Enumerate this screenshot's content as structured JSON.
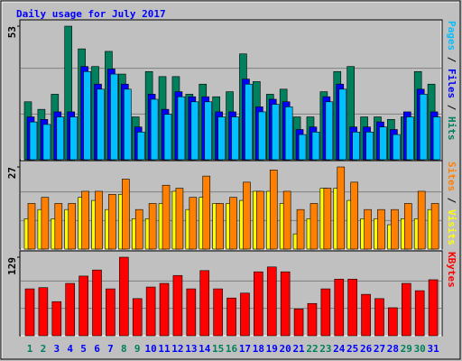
{
  "title": "Daily usage for July 2017",
  "legend_separator": " / ",
  "categories": [
    "1",
    "2",
    "3",
    "4",
    "5",
    "6",
    "7",
    "8",
    "9",
    "10",
    "11",
    "12",
    "13",
    "14",
    "15",
    "16",
    "17",
    "18",
    "19",
    "20",
    "21",
    "22",
    "23",
    "24",
    "25",
    "26",
    "27",
    "28",
    "29",
    "30",
    "31"
  ],
  "category_colors": [
    "#00805c",
    "#00805c",
    "#0000ff",
    "#0000ff",
    "#0000ff",
    "#0000ff",
    "#0000ff",
    "#00805c",
    "#00805c",
    "#0000ff",
    "#0000ff",
    "#0000ff",
    "#0000ff",
    "#0000ff",
    "#00805c",
    "#00805c",
    "#0000ff",
    "#0000ff",
    "#0000ff",
    "#0000ff",
    "#0000ff",
    "#00805c",
    "#00805c",
    "#0000ff",
    "#0000ff",
    "#0000ff",
    "#0000ff",
    "#0000ff",
    "#00805c",
    "#00805c",
    "#0000ff"
  ],
  "chart_data": [
    {
      "type": "bar",
      "ylim": [
        0,
        53
      ],
      "yticks": [
        53
      ],
      "grid": true,
      "series": [
        {
          "name": "Hits",
          "color": "#00805c",
          "values": [
            23,
            20,
            26,
            53,
            44,
            37,
            43,
            34,
            17,
            35,
            33,
            33,
            26,
            30,
            25,
            27,
            42,
            31,
            26,
            28,
            17,
            17,
            27,
            35,
            37,
            17,
            17,
            16,
            17,
            35,
            30
          ]
        },
        {
          "name": "Files",
          "color": "#0000ff",
          "values": [
            17,
            16,
            19,
            19,
            37,
            30,
            36,
            30,
            13,
            26,
            20,
            27,
            25,
            25,
            19,
            19,
            32,
            21,
            24,
            23,
            12,
            13,
            25,
            30,
            13,
            13,
            15,
            12,
            19,
            28,
            19
          ]
        },
        {
          "name": "Pages",
          "color": "#00c0ff",
          "values": [
            15,
            14,
            17,
            17,
            35,
            28,
            34,
            28,
            11,
            24,
            18,
            25,
            23,
            23,
            17,
            17,
            30,
            19,
            22,
            21,
            10,
            11,
            23,
            28,
            11,
            11,
            13,
            10,
            17,
            26,
            17
          ]
        }
      ]
    },
    {
      "type": "bar",
      "ylim": [
        0,
        27
      ],
      "yticks": [
        27
      ],
      "grid": true,
      "series": [
        {
          "name": "Visits",
          "color": "#ffff00",
          "values": [
            10,
            13,
            10,
            13,
            17,
            16,
            13,
            18,
            10,
            10,
            15,
            19,
            13,
            17,
            15,
            15,
            16,
            19,
            19,
            15,
            5,
            10,
            20,
            20,
            16,
            10,
            10,
            8,
            10,
            10,
            13
          ]
        },
        {
          "name": "Sites",
          "color": "#ff8000",
          "values": [
            15,
            17,
            15,
            15,
            19,
            19,
            18,
            23,
            13,
            15,
            21,
            20,
            17,
            24,
            15,
            17,
            22,
            19,
            26,
            19,
            13,
            15,
            20,
            27,
            22,
            13,
            13,
            13,
            15,
            19,
            15
          ]
        }
      ]
    },
    {
      "type": "bar",
      "ylim": [
        0,
        129
      ],
      "yticks": [
        129
      ],
      "grid": true,
      "series": [
        {
          "name": "KBytes",
          "color": "#ff0000",
          "values": [
            77,
            79,
            56,
            86,
            98,
            108,
            77,
            129,
            61,
            80,
            86,
            99,
            77,
            107,
            77,
            62,
            70,
            105,
            113,
            105,
            44,
            53,
            77,
            93,
            93,
            68,
            61,
            46,
            86,
            74,
            92
          ]
        }
      ]
    }
  ]
}
